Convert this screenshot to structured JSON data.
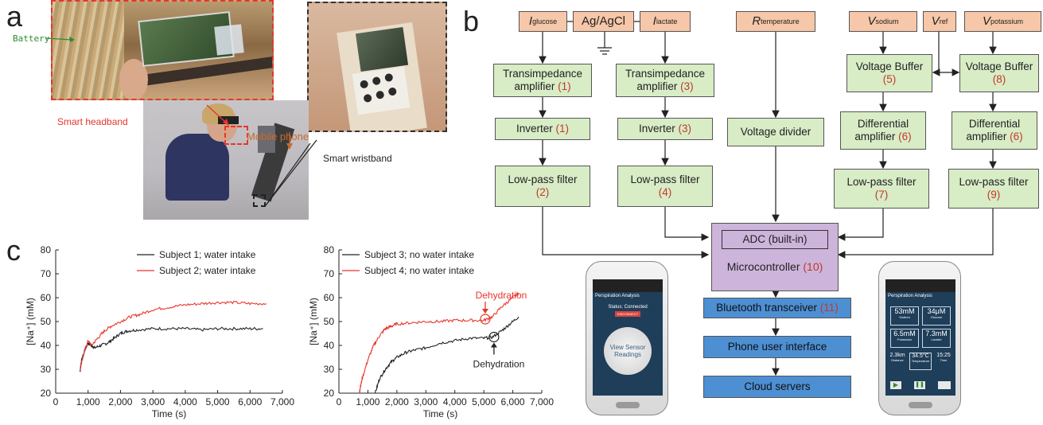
{
  "panels": {
    "a": "a",
    "b": "b",
    "c": "c"
  },
  "panel_a": {
    "battery_label": "Battery",
    "headband_label": "Smart headband",
    "phone_label": "Mobile phone",
    "wristband_label": "Smart wristband",
    "colors": {
      "headband": "#e8352b",
      "phone": "#c86a2a",
      "battery": "#2e8b2e"
    }
  },
  "panel_b": {
    "sensors": {
      "glucose": {
        "main": "I",
        "sub": "glucose"
      },
      "ref": "Ag/AgCl",
      "lactate": {
        "main": "I",
        "sub": "lactate"
      },
      "temperature": {
        "main": "R",
        "sub": "temperature"
      },
      "sodium": {
        "main": "V",
        "sub": "sodium"
      },
      "vref": {
        "main": "V",
        "sub": "ref"
      },
      "potassium": {
        "main": "V",
        "sub": "potassium"
      }
    },
    "blocks": {
      "tia1": {
        "text": "Transimpedance amplifier",
        "num": "(1)"
      },
      "tia3": {
        "text": "Transimpedance amplifier",
        "num": "(3)"
      },
      "inv1": {
        "text": "Inverter",
        "num": "(1)"
      },
      "inv3": {
        "text": "Inverter",
        "num": "(3)"
      },
      "lpf2": {
        "text": "Low-pass filter",
        "num": "(2)"
      },
      "lpf4": {
        "text": "Low-pass filter",
        "num": "(4)"
      },
      "vdiv": {
        "text": "Voltage divider"
      },
      "vb5": {
        "text": "Voltage Buffer",
        "num": "(5)"
      },
      "vb8": {
        "text": "Voltage Buffer",
        "num": "(8)"
      },
      "da6a": {
        "text": "Differential amplifier",
        "num": "(6)"
      },
      "da6b": {
        "text": "Differential amplifier",
        "num": "(6)"
      },
      "lpf7": {
        "text": "Low-pass filter",
        "num": "(7)"
      },
      "lpf9": {
        "text": "Low-pass filter",
        "num": "(9)"
      },
      "adc": "ADC (built-in)",
      "mcu": {
        "text": "Microcontroller",
        "num": "(10)"
      },
      "bt": {
        "text": "Bluetooth transceiver",
        "num": "(11)"
      },
      "ui": "Phone user interface",
      "cloud": "Cloud servers"
    },
    "phone_left": {
      "title": "Perspiration Analysis",
      "status": "Status: Connected",
      "disconnect": "DISCONNECT",
      "button": "View Sensor Readings"
    },
    "phone_right": {
      "title": "Perspiration Analysis",
      "readings": [
        {
          "value": "53mM",
          "label": "Sodium"
        },
        {
          "value": "34μM",
          "label": "Glucose"
        },
        {
          "value": "6.5mM",
          "label": "Potassium"
        },
        {
          "value": "7.3mM",
          "label": "Lactate"
        }
      ],
      "bottom": [
        {
          "value": "2.3km",
          "label": "Distance"
        },
        {
          "value": "34.5°C",
          "label": "Temperature"
        },
        {
          "value": "15:25",
          "label": "Time"
        }
      ]
    },
    "colors": {
      "green": "#d8ecc6",
      "peach": "#f6c7a8",
      "blue": "#4d8fd3",
      "purple": "#cdb4db",
      "number": "#c0392b"
    }
  },
  "chart_data": [
    {
      "type": "line",
      "xlabel": "Time (s)",
      "ylabel": "[Na⁺] (mM)",
      "xlim": [
        0,
        7000
      ],
      "ylim": [
        20,
        80
      ],
      "xticks": [
        "0",
        "1,000",
        "2,000",
        "3,000",
        "4,000",
        "5,000",
        "6,000",
        "7,000"
      ],
      "yticks": [
        "20",
        "30",
        "40",
        "50",
        "60",
        "70",
        "80"
      ],
      "series": [
        {
          "name": "Subject 1; water intake",
          "color": "#222222",
          "x": [
            750,
            800,
            900,
            1000,
            1100,
            1200,
            1400,
            1600,
            1800,
            2000,
            2200,
            2500,
            3000,
            3500,
            4000,
            4500,
            5000,
            5500,
            6000,
            6400
          ],
          "y": [
            29,
            34,
            38,
            41,
            40,
            39,
            40,
            41,
            43,
            45,
            46,
            46.5,
            47,
            47,
            47,
            46.5,
            47,
            47,
            47,
            47
          ]
        },
        {
          "name": "Subject 2; water intake",
          "color": "#e8352b",
          "x": [
            750,
            800,
            900,
            1000,
            1100,
            1300,
            1500,
            1700,
            2000,
            2300,
            2600,
            3000,
            3500,
            4000,
            4500,
            5000,
            5500,
            6000,
            6500
          ],
          "y": [
            30,
            33,
            38,
            42,
            40,
            43,
            46,
            48,
            50,
            52,
            53,
            55,
            56,
            57,
            57.5,
            58,
            58,
            57.5,
            57.5
          ]
        }
      ],
      "legend": "top-right"
    },
    {
      "type": "line",
      "xlabel": "Time (s)",
      "ylabel": "[Na⁺] (mM)",
      "xlim": [
        0,
        7000
      ],
      "ylim": [
        20,
        80
      ],
      "xticks": [
        "0",
        "1,000",
        "2,000",
        "3,000",
        "4,000",
        "5,000",
        "6,000",
        "7,000"
      ],
      "yticks": [
        "20",
        "30",
        "40",
        "50",
        "60",
        "70",
        "80"
      ],
      "series": [
        {
          "name": "Subject 3; no water intake",
          "color": "#222222",
          "x": [
            1250,
            1400,
            1600,
            1800,
            2000,
            2300,
            2600,
            3000,
            3500,
            4000,
            4500,
            5000,
            5300,
            5600,
            5900,
            6200
          ],
          "y": [
            20,
            26,
            30,
            33,
            35,
            37,
            38,
            39,
            41,
            42,
            43,
            43,
            43.5,
            46,
            49,
            52
          ]
        },
        {
          "name": "Subject 4; no water intake",
          "color": "#e8352b",
          "x": [
            700,
            800,
            1000,
            1200,
            1400,
            1600,
            1800,
            2000,
            2500,
            3000,
            3500,
            4000,
            4500,
            5000,
            5300,
            5600,
            5900,
            6200
          ],
          "y": [
            20,
            26,
            34,
            40,
            44,
            47,
            48,
            49,
            49.5,
            50,
            50,
            50.5,
            50.5,
            50.5,
            52,
            56,
            59,
            62
          ]
        }
      ],
      "annotations": [
        {
          "text": "Dehydration",
          "x": 5050,
          "y": 51,
          "color": "#e8352b"
        },
        {
          "text": "Dehydration",
          "x": 5350,
          "y": 43.5,
          "color": "#222222"
        }
      ],
      "legend": "top-left"
    }
  ]
}
